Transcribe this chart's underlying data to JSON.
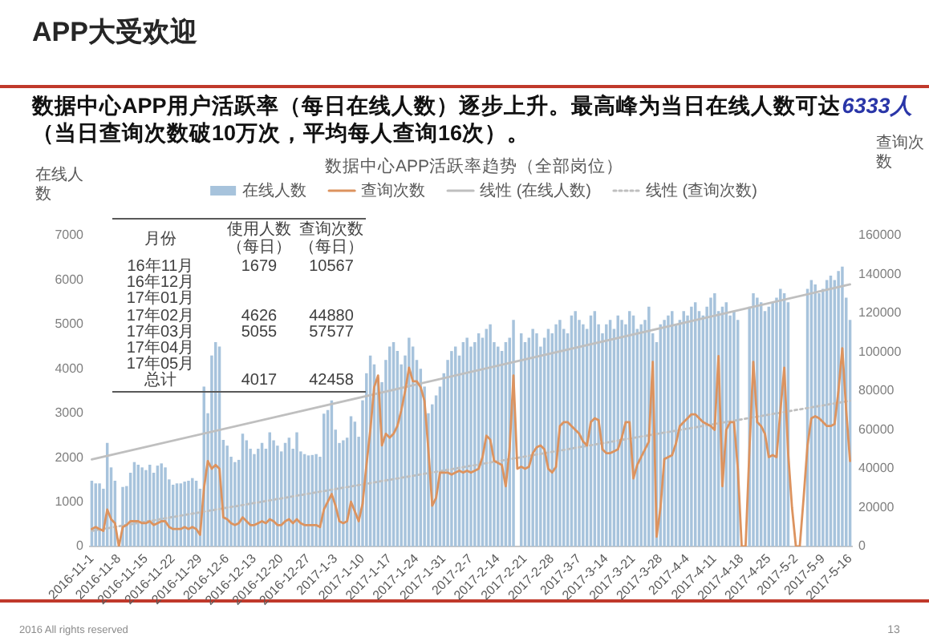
{
  "chart_data": [
    {
      "type": "bar",
      "title": "数据中心APP活跃率趋势（全部岗位）",
      "ylabel": "在线人数",
      "y2label": "查询次数",
      "annotations": [
        "APP大受欢迎",
        "数据中心APP用户活跃率（每日在线人数）逐步上升。最高峰为当日在线人数可达",
        "6333人",
        "（当日查询次数破10万次，平均每人查询16次）。",
        "2016 All rights reserved",
        "13"
      ],
      "x": [
        "2016-11-01",
        "2016-11-02",
        "2016-11-03",
        "2016-11-04",
        "2016-11-05",
        "2016-11-06",
        "2016-11-07",
        "2016-11-08",
        "2016-11-09",
        "2016-11-10",
        "2016-11-11",
        "2016-11-12",
        "2016-11-13",
        "2016-11-14",
        "2016-11-15",
        "2016-11-16",
        "2016-11-17",
        "2016-11-18",
        "2016-11-19",
        "2016-11-20",
        "2016-11-21",
        "2016-11-22",
        "2016-11-23",
        "2016-11-24",
        "2016-11-25",
        "2016-11-26",
        "2016-11-27",
        "2016-11-28",
        "2016-11-29",
        "2016-11-30",
        "2016-12-01",
        "2016-12-02",
        "2016-12-03",
        "2016-12-04",
        "2016-12-05",
        "2016-12-06",
        "2016-12-07",
        "2016-12-08",
        "2016-12-09",
        "2016-12-10",
        "2016-12-11",
        "2016-12-12",
        "2016-12-13",
        "2016-12-14",
        "2016-12-15",
        "2016-12-16",
        "2016-12-17",
        "2016-12-18",
        "2016-12-19",
        "2016-12-20",
        "2016-12-21",
        "2016-12-22",
        "2016-12-23",
        "2016-12-24",
        "2016-12-25",
        "2016-12-26",
        "2016-12-27",
        "2016-12-28",
        "2016-12-29",
        "2016-12-30",
        "2016-12-31",
        "2017-01-01",
        "2017-01-02",
        "2017-01-03",
        "2017-01-04",
        "2017-01-05",
        "2017-01-06",
        "2017-01-07",
        "2017-01-08",
        "2017-01-09",
        "2017-01-10",
        "2017-01-11",
        "2017-01-12",
        "2017-01-13",
        "2017-01-14",
        "2017-01-15",
        "2017-01-16",
        "2017-01-17",
        "2017-01-18",
        "2017-01-19",
        "2017-01-20",
        "2017-01-21",
        "2017-01-22",
        "2017-01-23",
        "2017-01-24",
        "2017-01-25",
        "2017-01-26",
        "2017-01-27",
        "2017-01-28",
        "2017-01-29",
        "2017-01-30",
        "2017-01-31",
        "2017-02-01",
        "2017-02-02",
        "2017-02-03",
        "2017-02-04",
        "2017-02-05",
        "2017-02-06",
        "2017-02-07",
        "2017-02-08",
        "2017-02-09",
        "2017-02-10",
        "2017-02-11",
        "2017-02-12",
        "2017-02-13",
        "2017-02-14",
        "2017-02-15",
        "2017-02-16",
        "2017-02-17",
        "2017-02-18",
        "2017-02-19",
        "2017-02-20",
        "2017-02-21",
        "2017-02-22",
        "2017-02-23",
        "2017-02-24",
        "2017-02-25",
        "2017-02-26",
        "2017-02-27",
        "2017-02-28",
        "2017-03-01",
        "2017-03-02",
        "2017-03-03",
        "2017-03-04",
        "2017-03-05",
        "2017-03-06",
        "2017-03-07",
        "2017-03-08",
        "2017-03-09",
        "2017-03-10",
        "2017-03-11",
        "2017-03-12",
        "2017-03-13",
        "2017-03-14",
        "2017-03-15",
        "2017-03-16",
        "2017-03-17",
        "2017-03-18",
        "2017-03-19",
        "2017-03-20",
        "2017-03-21",
        "2017-03-22",
        "2017-03-23",
        "2017-03-24",
        "2017-03-25",
        "2017-03-26",
        "2017-03-27",
        "2017-03-28",
        "2017-03-29",
        "2017-03-30",
        "2017-03-31",
        "2017-04-01",
        "2017-04-02",
        "2017-04-03",
        "2017-04-04",
        "2017-04-05",
        "2017-04-06",
        "2017-04-07",
        "2017-04-08",
        "2017-04-09",
        "2017-04-10",
        "2017-04-11",
        "2017-04-12",
        "2017-04-13",
        "2017-04-14",
        "2017-04-15",
        "2017-04-16",
        "2017-04-17",
        "2017-04-18",
        "2017-04-19",
        "2017-04-20",
        "2017-04-21",
        "2017-04-22",
        "2017-04-23",
        "2017-04-24",
        "2017-04-25",
        "2017-04-26",
        "2017-04-27",
        "2017-04-28",
        "2017-04-29",
        "2017-04-30",
        "2017-05-01",
        "2017-05-02",
        "2017-05-03",
        "2017-05-04",
        "2017-05-05",
        "2017-05-06",
        "2017-05-07",
        "2017-05-08",
        "2017-05-09",
        "2017-05-10",
        "2017-05-11",
        "2017-05-12",
        "2017-05-13",
        "2017-05-14",
        "2017-05-15",
        "2017-05-16"
      ],
      "xlim": [
        "2016-10-31T12:00",
        "2017-05-16T12:00"
      ],
      "xticks": [
        {
          "value": "2016-11-01",
          "label": "2016-11-1"
        },
        {
          "value": "2016-11-08",
          "label": "2016-11-8"
        },
        {
          "value": "2016-11-15",
          "label": "2016-11-15"
        },
        {
          "value": "2016-11-22",
          "label": "2016-11-22"
        },
        {
          "value": "2016-11-29",
          "label": "2016-11-29"
        },
        {
          "value": "2016-12-06",
          "label": "2016-12-6"
        },
        {
          "value": "2016-12-13",
          "label": "2016-12-13"
        },
        {
          "value": "2016-12-20",
          "label": "2016-12-20"
        },
        {
          "value": "2016-12-27",
          "label": "2016-12-27"
        },
        {
          "value": "2017-01-03",
          "label": "2017-1-3"
        },
        {
          "value": "2017-01-10",
          "label": "2017-1-10"
        },
        {
          "value": "2017-01-17",
          "label": "2017-1-17"
        },
        {
          "value": "2017-01-24",
          "label": "2017-1-24"
        },
        {
          "value": "2017-01-31",
          "label": "2017-1-31"
        },
        {
          "value": "2017-02-07",
          "label": "2017-2-7"
        },
        {
          "value": "2017-02-14",
          "label": "2017-2-14"
        },
        {
          "value": "2017-02-21",
          "label": "2017-2-21"
        },
        {
          "value": "2017-02-28",
          "label": "2017-2-28"
        },
        {
          "value": "2017-03-07",
          "label": "2017-3-7"
        },
        {
          "value": "2017-03-14",
          "label": "2017-3-14"
        },
        {
          "value": "2017-03-21",
          "label": "2017-3-21"
        },
        {
          "value": "2017-03-28",
          "label": "2017-3-28"
        },
        {
          "value": "2017-04-04",
          "label": "2017-4-4"
        },
        {
          "value": "2017-04-11",
          "label": "2017-4-11"
        },
        {
          "value": "2017-04-18",
          "label": "2017-4-18"
        },
        {
          "value": "2017-04-25",
          "label": "2017-4-25"
        },
        {
          "value": "2017-05-02",
          "label": "2017-5-2"
        },
        {
          "value": "2017-05-09",
          "label": "2017-5-9"
        },
        {
          "value": "2017-05-16",
          "label": "2017-5-16"
        }
      ],
      "ylim": [
        0,
        7000
      ],
      "yticks": [
        0,
        1000,
        2000,
        3000,
        4000,
        5000,
        6000,
        7000
      ],
      "y2lim": [
        0,
        160000
      ],
      "y2ticks": [
        0,
        20000,
        40000,
        60000,
        80000,
        100000,
        120000,
        140000,
        160000
      ],
      "legend": "top",
      "series": [
        {
          "name": "在线人数",
          "type": "bar",
          "color": "#a7c3dc",
          "values": [
            1480,
            1420,
            1420,
            1300,
            2330,
            1780,
            1480,
            0,
            1340,
            1360,
            1660,
            1900,
            1840,
            1780,
            1720,
            1840,
            1660,
            1820,
            1870,
            1780,
            1510,
            1390,
            1420,
            1420,
            1460,
            1480,
            1540,
            1480,
            1300,
            3600,
            3000,
            4300,
            4600,
            4500,
            2400,
            2270,
            2020,
            1900,
            1950,
            2540,
            2390,
            2200,
            2080,
            2200,
            2330,
            2200,
            2570,
            2390,
            2270,
            2140,
            2330,
            2450,
            2200,
            2570,
            2140,
            2080,
            2050,
            2060,
            2080,
            2020,
            2990,
            3070,
            3290,
            2630,
            2330,
            2390,
            2450,
            2930,
            2810,
            2470,
            3290,
            3900,
            4300,
            4100,
            3800,
            3700,
            4200,
            4500,
            4600,
            4400,
            4100,
            4300,
            4700,
            4500,
            4200,
            4000,
            3600,
            3000,
            3200,
            3400,
            3600,
            3900,
            4200,
            4400,
            4500,
            4300,
            4600,
            4700,
            4500,
            4600,
            4800,
            4700,
            4900,
            5000,
            4600,
            4500,
            4400,
            4600,
            4700,
            5100,
            0,
            4800,
            4600,
            4700,
            4900,
            4800,
            4500,
            4700,
            4900,
            4800,
            5000,
            5100,
            4900,
            4800,
            5200,
            5300,
            5100,
            5000,
            4900,
            5200,
            5300,
            5000,
            4800,
            5000,
            5100,
            4900,
            5200,
            5100,
            5000,
            5300,
            5200,
            4900,
            5000,
            5100,
            5400,
            4800,
            4600,
            5000,
            5100,
            5200,
            5300,
            5000,
            5100,
            5300,
            5200,
            5400,
            5500,
            5300,
            5200,
            5400,
            5600,
            5700,
            5300,
            5400,
            5500,
            5200,
            5300,
            5100,
            0,
            0,
            5400,
            5700,
            5600,
            5500,
            5300,
            5400,
            5500,
            5600,
            5800,
            5700,
            5500,
            0,
            0,
            0,
            0,
            5800,
            6000,
            5900,
            5700,
            5800,
            6000,
            6100,
            6000,
            6200,
            6300,
            5600,
            5100
          ]
        },
        {
          "name": "查询次数",
          "type": "line",
          "axis": "y2",
          "color": "#dc935f",
          "values": [
            9000,
            10000,
            9000,
            8000,
            19000,
            14000,
            12000,
            0,
            10000,
            11000,
            13000,
            13000,
            13000,
            12000,
            12000,
            13000,
            11000,
            12000,
            13000,
            13000,
            10000,
            9000,
            9000,
            9000,
            10000,
            9000,
            10000,
            9000,
            6000,
            30000,
            44000,
            40000,
            42000,
            40000,
            15000,
            14000,
            12000,
            11000,
            12000,
            15000,
            13000,
            11000,
            11000,
            12000,
            13000,
            12000,
            14000,
            13000,
            11000,
            11000,
            13000,
            14000,
            12000,
            14000,
            12000,
            11000,
            11000,
            11000,
            11000,
            10000,
            19000,
            23000,
            27000,
            21000,
            13000,
            12000,
            13000,
            23000,
            18000,
            13000,
            22000,
            42000,
            60000,
            82000,
            88000,
            52000,
            58000,
            56000,
            58000,
            62000,
            70000,
            80000,
            92000,
            85000,
            85000,
            82000,
            75000,
            50000,
            21000,
            25000,
            38000,
            38000,
            38000,
            37000,
            38000,
            39000,
            38000,
            39000,
            38000,
            39000,
            40000,
            46000,
            57000,
            55000,
            44000,
            43000,
            42000,
            31000,
            50000,
            88000,
            40000,
            41000,
            40000,
            41000,
            48000,
            51000,
            52000,
            50000,
            40000,
            38000,
            41000,
            62000,
            64000,
            64000,
            62000,
            60000,
            58000,
            54000,
            52000,
            64000,
            66000,
            65000,
            50000,
            48000,
            48000,
            49000,
            50000,
            56000,
            64000,
            64000,
            35000,
            42000,
            46000,
            50000,
            54000,
            95000,
            5000,
            20000,
            45000,
            46000,
            47000,
            53000,
            62000,
            64000,
            66000,
            68000,
            68000,
            66000,
            64000,
            63000,
            62000,
            60000,
            98000,
            31000,
            60000,
            64000,
            64000,
            40000,
            0,
            0,
            50000,
            95000,
            64000,
            62000,
            58000,
            46000,
            47000,
            46000,
            70000,
            92000,
            48000,
            20000,
            0,
            0,
            25000,
            52000,
            66000,
            67000,
            66000,
            64000,
            62000,
            62000,
            63000,
            80000,
            102000,
            70000,
            44000
          ]
        },
        {
          "name": "线性 (在线人数)",
          "type": "line",
          "color": "#bfbfbf",
          "x": [
            "2016-11-01",
            "2017-05-16"
          ],
          "values": [
            1960,
            5900
          ]
        },
        {
          "name": "线性 (查询次数)",
          "type": "line",
          "axis": "y2",
          "color": "#bfbfbf",
          "line_style": "dotted",
          "x": [
            "2016-11-01",
            "2017-05-16"
          ],
          "values": [
            8000,
            75000
          ]
        }
      ]
    },
    {
      "type": "other",
      "annotations": [
        "月份"
      ],
      "categories": [
        "16年11月",
        "16年12月",
        "17年01月",
        "17年02月",
        "17年03月",
        "17年04月",
        "17年05月",
        "总计"
      ],
      "data_labels": true,
      "series": [
        {
          "name": "使用人数（每日）",
          "values": [
            1679,
            null,
            null,
            4626,
            5055,
            null,
            null,
            4017
          ]
        },
        {
          "name": "查询次数（每日）",
          "values": [
            10567,
            null,
            null,
            44880,
            57577,
            null,
            null,
            42458
          ]
        }
      ]
    }
  ]
}
